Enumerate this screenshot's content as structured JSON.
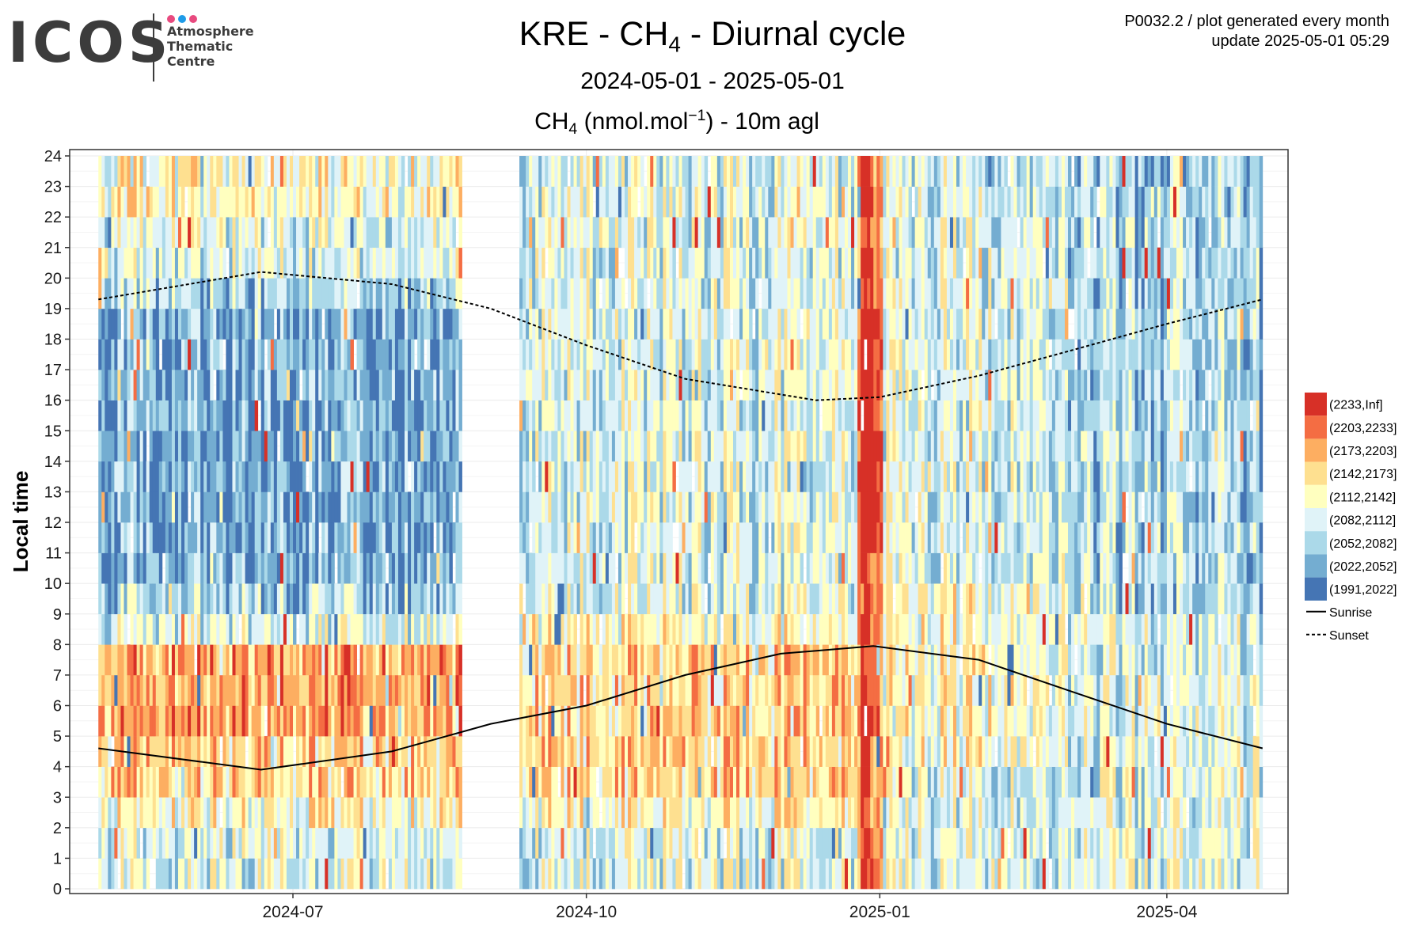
{
  "header": {
    "logo_word": "ICOS",
    "logo_sub": "Atmosphere\nThematic\nCentre",
    "logo_dot_colors": [
      "#e84a7f",
      "#1e9be8",
      "#e84a7f"
    ],
    "title_pre": "KRE - CH",
    "title_sub": "4",
    "title_post": " - Diurnal cycle",
    "date_range": "2024-05-01 - 2025-05-01",
    "subtitle_pre": "CH",
    "subtitle_sub": "4",
    "subtitle_mid": " (nmol.mol",
    "subtitle_sup": "−1",
    "subtitle_post": ") - 10m agl",
    "meta_line1": "P0032.2 / plot generated every month",
    "meta_line2": "update  2025-05-01 05:29"
  },
  "chart_data": {
    "type": "heatmap",
    "station": "KRE",
    "gas": "CH4",
    "unit": "nmol.mol-1",
    "inlet": "10m agl",
    "x_start": "2024-05-01",
    "x_end": "2025-05-01",
    "data_gap": [
      "2024-08-23",
      "2024-09-10"
    ],
    "ylabel": "Local time",
    "ylim": [
      0,
      24
    ],
    "y_ticks": [
      "0",
      "1",
      "2",
      "3",
      "4",
      "5",
      "6",
      "7",
      "8",
      "9",
      "10",
      "11",
      "12",
      "13",
      "14",
      "15",
      "16",
      "17",
      "18",
      "19",
      "20",
      "21",
      "22",
      "23",
      "24"
    ],
    "x_ticks": [
      {
        "date": "2024-07-01",
        "label": "2024-07"
      },
      {
        "date": "2024-10-01",
        "label": "2024-10"
      },
      {
        "date": "2025-01-01",
        "label": "2025-01"
      },
      {
        "date": "2025-04-01",
        "label": "2025-04"
      }
    ],
    "grid": true,
    "legend_position": "right",
    "bins": [
      {
        "label": "(2233,Inf]",
        "color": "#d73027"
      },
      {
        "label": "(2203,2233]",
        "color": "#f46d43"
      },
      {
        "label": "(2173,2203]",
        "color": "#fdae61"
      },
      {
        "label": "(2142,2173]",
        "color": "#fee090"
      },
      {
        "label": "(2112,2142]",
        "color": "#ffffbf"
      },
      {
        "label": "(2082,2112]",
        "color": "#e0f3f8"
      },
      {
        "label": "(2052,2082]",
        "color": "#abd9e9"
      },
      {
        "label": "(2022,2052]",
        "color": "#74add1"
      },
      {
        "label": "(1991,2022]",
        "color": "#4575b4"
      }
    ],
    "lines": [
      {
        "name": "Sunrise",
        "style": "solid",
        "color": "#000000",
        "points": [
          [
            "2024-05-01",
            4.6
          ],
          [
            "2024-06-21",
            3.9
          ],
          [
            "2024-08-01",
            4.5
          ],
          [
            "2024-09-01",
            5.4
          ],
          [
            "2024-10-01",
            6.0
          ],
          [
            "2024-11-01",
            7.0
          ],
          [
            "2024-12-01",
            7.7
          ],
          [
            "2024-12-30",
            7.95
          ],
          [
            "2025-02-01",
            7.5
          ],
          [
            "2025-03-01",
            6.5
          ],
          [
            "2025-04-01",
            5.4
          ],
          [
            "2025-05-01",
            4.6
          ]
        ]
      },
      {
        "name": "Sunset",
        "style": "dashed",
        "color": "#000000",
        "points": [
          [
            "2024-05-01",
            19.3
          ],
          [
            "2024-06-21",
            20.2
          ],
          [
            "2024-08-01",
            19.8
          ],
          [
            "2024-09-01",
            19.0
          ],
          [
            "2024-10-01",
            17.8
          ],
          [
            "2024-11-01",
            16.7
          ],
          [
            "2024-12-12",
            16.0
          ],
          [
            "2025-01-01",
            16.1
          ],
          [
            "2025-02-01",
            16.8
          ],
          [
            "2025-03-01",
            17.6
          ],
          [
            "2025-04-01",
            18.5
          ],
          [
            "2025-05-01",
            19.3
          ]
        ]
      }
    ],
    "regimes": [
      {
        "start": "2024-05-01",
        "end": "2024-08-23",
        "by_hour": [
          5,
          5,
          4,
          3,
          3,
          2,
          2,
          2,
          5,
          6,
          7,
          7,
          7,
          7,
          7,
          7,
          7,
          7,
          7,
          6,
          5,
          5,
          4,
          4
        ],
        "spread": 3
      },
      {
        "start": "2024-09-10",
        "end": "2024-12-25",
        "by_hour": [
          5,
          5,
          4,
          3,
          3,
          3,
          3,
          3,
          4,
          5,
          5,
          5,
          5,
          5,
          5,
          5,
          5,
          5,
          5,
          5,
          5,
          5,
          5,
          5
        ],
        "spread": 3
      },
      {
        "start": "2024-12-25",
        "end": "2025-01-02",
        "by_hour": [
          1,
          1,
          1,
          1,
          1,
          1,
          1,
          1,
          1,
          1,
          1,
          0,
          0,
          0,
          0,
          0,
          0,
          0,
          0,
          1,
          1,
          1,
          1,
          1
        ],
        "spread": 2
      },
      {
        "start": "2025-01-02",
        "end": "2025-03-01",
        "by_hour": [
          5,
          5,
          5,
          5,
          4,
          4,
          4,
          4,
          4,
          4,
          5,
          5,
          5,
          5,
          5,
          5,
          5,
          5,
          5,
          5,
          5,
          5,
          5,
          5
        ],
        "spread": 3
      },
      {
        "start": "2025-03-01",
        "end": "2025-05-01",
        "by_hour": [
          5,
          5,
          5,
          5,
          5,
          5,
          5,
          5,
          5,
          6,
          6,
          6,
          6,
          6,
          6,
          6,
          6,
          6,
          6,
          6,
          6,
          6,
          6,
          6
        ],
        "spread": 3
      }
    ]
  }
}
